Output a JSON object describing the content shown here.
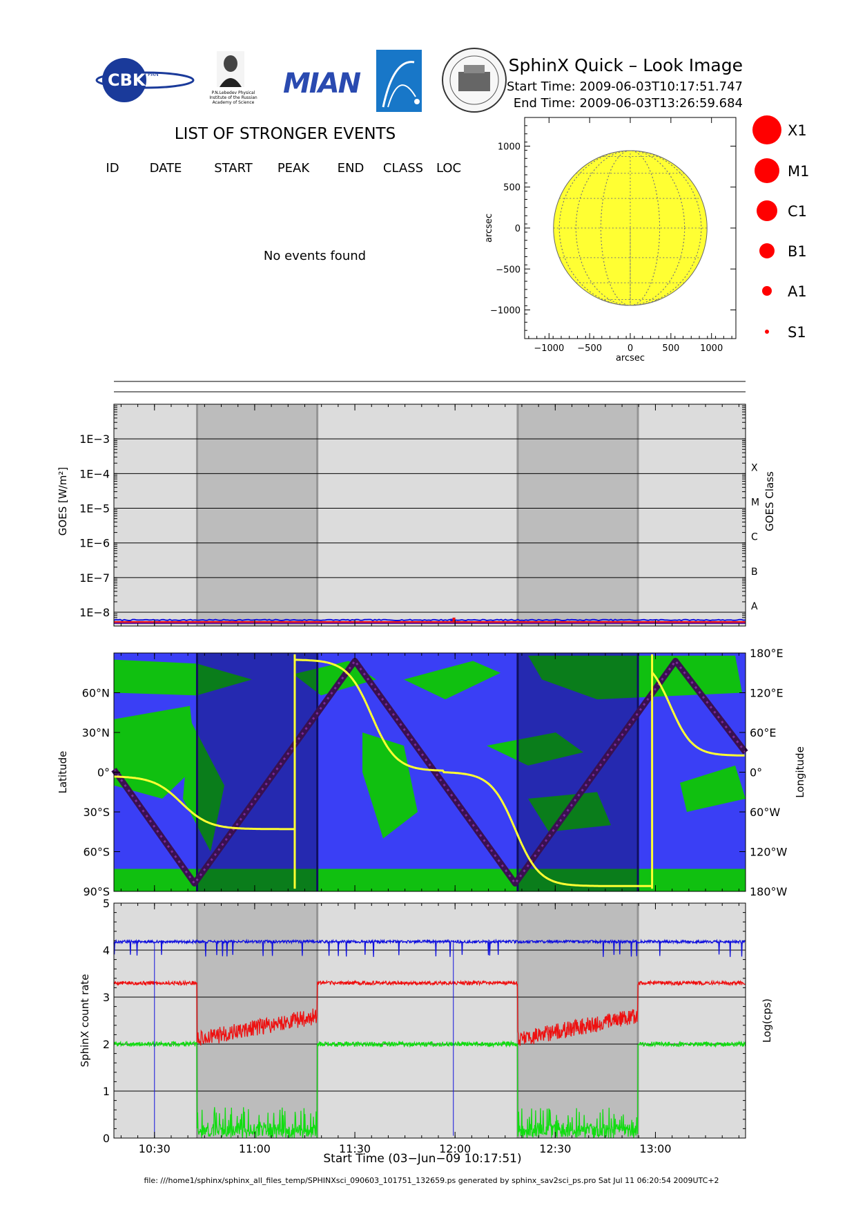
{
  "header": {
    "title": "SphinX Quick – Look Image",
    "start_time": "Start Time: 2009-06-03T10:17:51.747",
    "end_time": "End Time: 2009-06-03T13:26:59.684",
    "logo_cbk_text": "CBK",
    "logo_cbk_small": "PAN",
    "logo_lebedev_caption": [
      "P.N.Lebedev Physical",
      "Institute of the Russian",
      "Academy of Science"
    ],
    "logo_miani_text": "MIAN"
  },
  "events": {
    "title": "LIST OF STRONGER EVENTS",
    "columns": [
      "ID",
      "DATE",
      "START",
      "PEAK",
      "END",
      "CLASS",
      "LOC"
    ],
    "rows": [],
    "empty_message": "No events found"
  },
  "legend": {
    "items": [
      {
        "label": "X1"
      },
      {
        "label": "M1"
      },
      {
        "label": "C1"
      },
      {
        "label": "B1"
      },
      {
        "label": "A1"
      },
      {
        "label": "S1"
      }
    ],
    "color": "#ff0000"
  },
  "footer": "file: ///home1/sphinx/sphinx_all_files_temp/SPHINXsci_090603_101751_132659.ps generated by sphinx_sav2sci_ps.pro Sat Jul 11 06:20:54 2009UTC+2",
  "colors": {
    "panel_bg": "#dcdcdc",
    "shade": "#b8b8b8",
    "sun": "#ffff33",
    "ocean": "#3a3ff5",
    "land": "#10c010",
    "track_yellow": "#ffff33",
    "track_dark": "#3a1050",
    "series_blue": "#1010dd",
    "series_red": "#ee1010",
    "series_green": "#10dd10"
  },
  "chart_data": [
    {
      "type": "scatter",
      "name": "disk",
      "xlabel": "arcsec",
      "ylabel": "arcsec",
      "xlim": [
        -1300,
        1300
      ],
      "ylim": [
        -1350,
        1350
      ],
      "xticks": [
        -1000,
        -500,
        0,
        500,
        1000
      ],
      "yticks": [
        -1000,
        -500,
        0,
        500,
        1000
      ],
      "xtick_labels": [
        "−1000",
        "−500",
        "0",
        "500",
        "1000"
      ],
      "ytick_labels": [
        "−1000",
        "−500",
        "0",
        "500",
        "1000"
      ],
      "disk_radius": 945,
      "events": []
    },
    {
      "type": "line",
      "name": "goes",
      "ylabel": "GOES [W/m²]",
      "y2label": "GOES Class",
      "scale": "log",
      "ylim": [
        4e-09,
        0.01
      ],
      "yticks": [
        1e-08,
        1e-07,
        1e-06,
        1e-05,
        0.0001,
        0.001
      ],
      "ytick_labels": [
        "1E−8",
        "1E−7",
        "1E−6",
        "1E−5",
        "1E−4",
        "1E−3"
      ],
      "class_labels": [
        {
          "label": "A",
          "value": 1e-08
        },
        {
          "label": "B",
          "value": 1e-07
        },
        {
          "label": "C",
          "value": 1e-06
        },
        {
          "label": "M",
          "value": 1e-05
        },
        {
          "label": "X",
          "value": 0.0001
        }
      ],
      "level": 5.5e-09,
      "spikes": [
        {
          "time": "11:59",
          "value": 6.5e-09,
          "color": "blue"
        },
        {
          "time": "11:59:40",
          "value": 7e-09,
          "color": "red"
        }
      ]
    },
    {
      "type": "line",
      "name": "orbit",
      "ylabel": "Latitude",
      "y2label": "Longitude",
      "ylim": [
        -90,
        90
      ],
      "yticks": [
        -90,
        -60,
        -30,
        0,
        30,
        60
      ],
      "ytick_labels": [
        "90°S",
        "60°S",
        "30°S",
        "0°",
        "30°N",
        "60°N"
      ],
      "y2ticks": [
        "180°E",
        "120°E",
        "60°E",
        "0°",
        "60°W",
        "120°W",
        "180°W"
      ],
      "latitude_track": [
        {
          "time": "10:17:51",
          "value": 2
        },
        {
          "time": "10:42",
          "value": -84
        },
        {
          "time": "11:30",
          "value": 84
        },
        {
          "time": "12:18",
          "value": -84
        },
        {
          "time": "13:06",
          "value": 84
        },
        {
          "time": "13:26:59",
          "value": 15
        }
      ]
    },
    {
      "type": "line",
      "name": "counts",
      "ylabel": "SphinX count rate",
      "y2label": "Log(cps)",
      "ylim": [
        0,
        5
      ],
      "yticks": [
        0,
        1,
        2,
        3,
        4,
        5
      ],
      "ytick_labels": [
        "0",
        "1",
        "2",
        "3",
        "4",
        "5"
      ],
      "series": [
        {
          "color": "blue",
          "baseline": 4.18
        },
        {
          "color": "red",
          "baseline": 3.3,
          "in_shade_start": 2.1,
          "in_shade_end": 2.6
        },
        {
          "color": "green",
          "baseline": 2.0,
          "in_shade": 0.3
        }
      ]
    }
  ],
  "time_axis": {
    "start": "10:17:51",
    "end": "13:26:59",
    "ticks": [
      "10:30",
      "11:00",
      "11:30",
      "12:00",
      "12:30",
      "13:00"
    ],
    "xlabel": "Start Time (03−Jun−09 10:17:51)",
    "shaded_intervals": [
      [
        "10:42:45",
        "11:18:45"
      ],
      [
        "12:18:45",
        "12:54:45"
      ]
    ]
  }
}
